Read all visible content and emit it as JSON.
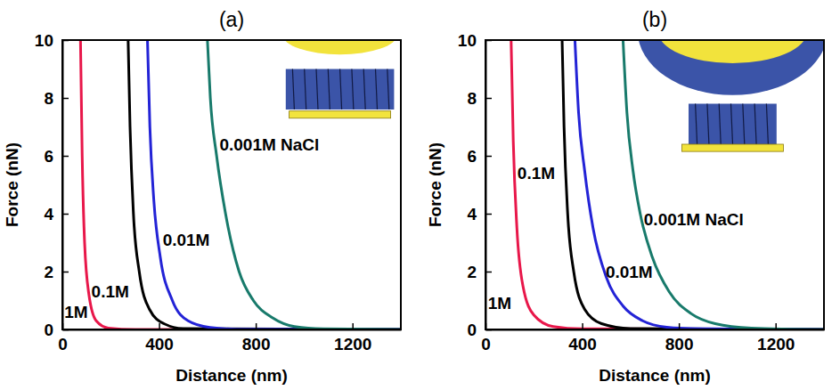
{
  "chart_data": [
    {
      "type": "line",
      "title": "(a)",
      "x_label": "Distance (nm)",
      "y_label": "Force (nN)",
      "xlim": [
        0,
        1400
      ],
      "ylim": [
        0,
        10
      ],
      "xticks": [
        0,
        400,
        800,
        1200
      ],
      "yticks": [
        0,
        2,
        4,
        6,
        8,
        10
      ],
      "series": [
        {
          "name": "1M",
          "color": "#e8174a",
          "x": [
            75,
            82,
            92,
            110,
            140,
            190,
            300,
            1400
          ],
          "values": [
            10,
            6,
            3,
            1.2,
            0.3,
            0.05,
            0,
            0
          ]
        },
        {
          "name": "0.1M",
          "color": "#000000",
          "x": [
            272,
            280,
            294,
            318,
            360,
            420,
            500,
            1400
          ],
          "values": [
            10,
            7,
            4,
            2,
            0.7,
            0.2,
            0.03,
            0
          ]
        },
        {
          "name": "0.01M",
          "color": "#2323d6",
          "x": [
            352,
            362,
            378,
            405,
            455,
            520,
            610,
            720,
            1400
          ],
          "values": [
            10,
            7,
            4.5,
            2.5,
            1,
            0.3,
            0.07,
            0.01,
            0
          ]
        },
        {
          "name": "0.001M NaCl",
          "color": "#187a6b",
          "x": [
            600,
            612,
            638,
            675,
            731,
            790,
            870,
            960,
            1080,
            1400
          ],
          "values": [
            10,
            8,
            6,
            4,
            2,
            1,
            0.4,
            0.1,
            0.02,
            0
          ]
        }
      ]
    },
    {
      "type": "line",
      "title": "(b)",
      "x_label": "Distance (nm)",
      "y_label": "Force (nN)",
      "xlim": [
        0,
        1400
      ],
      "ylim": [
        0,
        10
      ],
      "xticks": [
        0,
        400,
        800,
        1200
      ],
      "yticks": [
        0,
        2,
        4,
        6,
        8,
        10
      ],
      "series": [
        {
          "name": "1M",
          "color": "#e8174a",
          "x": [
            106,
            115,
            130,
            155,
            200,
            280,
            400,
            1400
          ],
          "values": [
            10,
            6.5,
            3.5,
            1.5,
            0.5,
            0.1,
            0.02,
            0
          ]
        },
        {
          "name": "0.1M",
          "color": "#000000",
          "x": [
            317,
            325,
            340,
            365,
            410,
            480,
            600,
            1400
          ],
          "values": [
            10,
            7,
            4,
            2,
            0.7,
            0.2,
            0.03,
            0
          ]
        },
        {
          "name": "0.01M",
          "color": "#2323d6",
          "x": [
            370,
            385,
            410,
            445,
            500,
            570,
            650,
            750,
            900,
            1400
          ],
          "values": [
            10,
            7.5,
            5.5,
            3.5,
            1.8,
            0.8,
            0.3,
            0.08,
            0.02,
            0
          ]
        },
        {
          "name": "0.001M NaCl",
          "color": "#187a6b",
          "x": [
            569,
            585,
            610,
            640,
            690,
            760,
            850,
            950,
            1100,
            1400
          ],
          "values": [
            10,
            7.5,
            5.5,
            4,
            2.5,
            1.3,
            0.55,
            0.2,
            0.05,
            0
          ]
        }
      ]
    }
  ]
}
